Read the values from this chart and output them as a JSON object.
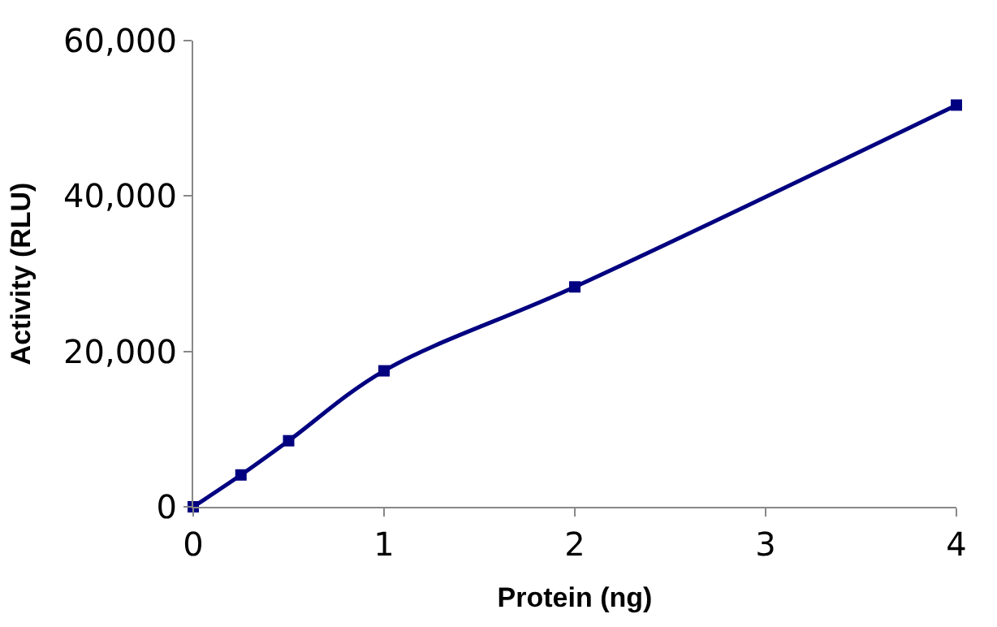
{
  "chart_data": {
    "type": "line",
    "xlabel": "Protein (ng)",
    "ylabel": "Activity (RLU)",
    "x": [
      0,
      0.25,
      0.5,
      1,
      2,
      4
    ],
    "series": [
      {
        "color": "#000080",
        "values": [
          0,
          4100,
          8500,
          17500,
          28300,
          51700
        ]
      }
    ],
    "xlim": [
      0,
      4
    ],
    "xticks": [
      0,
      1,
      2,
      3,
      4
    ],
    "ylim": [
      0,
      60000
    ],
    "yticks": [
      {
        "value": 0,
        "label": "0"
      },
      {
        "value": 20000,
        "label": "20,000"
      },
      {
        "value": 40000,
        "label": "40,000"
      },
      {
        "value": 60000,
        "label": "60,000"
      }
    ],
    "marker": "square",
    "line_style": "solid"
  }
}
